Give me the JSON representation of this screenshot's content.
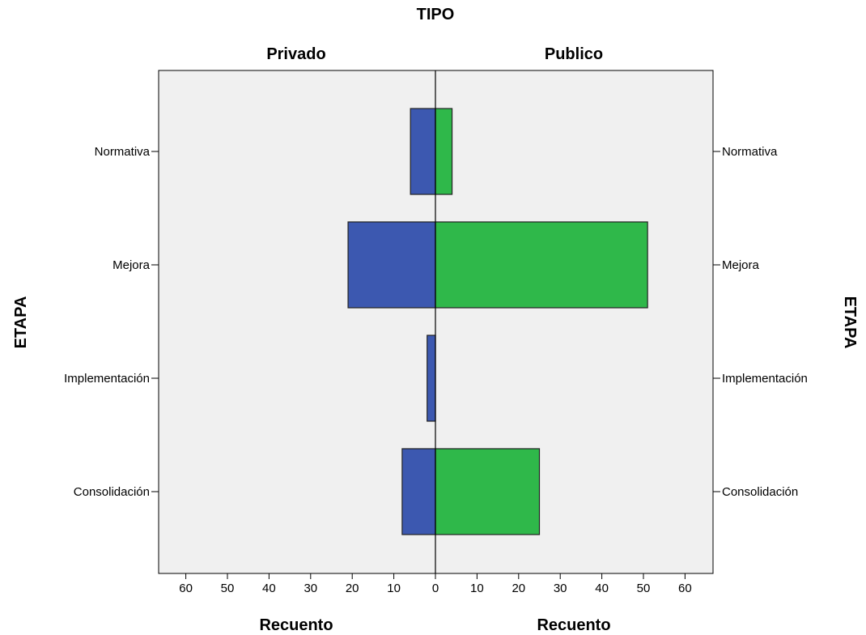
{
  "chart_data": {
    "type": "bar",
    "orientation": "horizontal-population-pyramid",
    "title": "TIPO",
    "ylabel": "ETAPA",
    "xlabel": "Recuento",
    "categories": [
      "Normativa",
      "Mejora",
      "Implementación",
      "Consolidación"
    ],
    "xlim": [
      0,
      60
    ],
    "xticks": [
      0,
      10,
      20,
      30,
      40,
      50,
      60
    ],
    "grid": false,
    "series": [
      {
        "name": "Privado",
        "side": "left",
        "color": "#3c58b0",
        "values": [
          6,
          21,
          2,
          8
        ]
      },
      {
        "name": "Publico",
        "side": "right",
        "color": "#2fb84a",
        "values": [
          4,
          51,
          0,
          25
        ]
      }
    ]
  },
  "colors": {
    "plot_background": "#f0f0f0",
    "bar_border": "#222222"
  }
}
